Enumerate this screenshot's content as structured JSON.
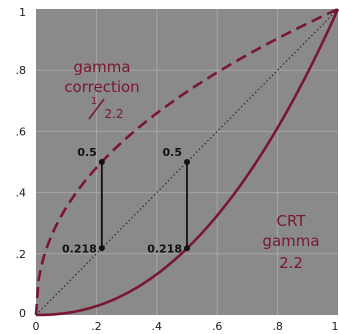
{
  "chart_data": {
    "type": "line",
    "xlim": [
      0,
      1
    ],
    "ylim": [
      0,
      1
    ],
    "grid": true,
    "x_ticks": [
      "0",
      ".2",
      ".4",
      ".6",
      ".8",
      "1"
    ],
    "y_ticks": [
      "0",
      ".2",
      ".4",
      ".6",
      ".8",
      "1"
    ],
    "colors": {
      "background": "#8a8a8a",
      "grid": "#a6a6a6",
      "curve": "#7a1630",
      "diagonal": "#2a2a2a",
      "markers": "#111111"
    },
    "series": [
      {
        "style": "dashed",
        "exponent": 0.4545,
        "x": [
          0,
          0.05,
          0.1,
          0.2,
          0.3,
          0.4,
          0.5,
          0.6,
          0.7,
          0.8,
          0.9,
          1.0
        ],
        "y": [
          0,
          0.256,
          0.351,
          0.481,
          0.579,
          0.659,
          0.73,
          0.793,
          0.85,
          0.904,
          0.953,
          1.0
        ]
      },
      {
        "style": "solid",
        "exponent": 2.2,
        "x": [
          0,
          0.1,
          0.2,
          0.3,
          0.4,
          0.5,
          0.6,
          0.7,
          0.8,
          0.9,
          1.0
        ],
        "y": [
          0,
          0.006,
          0.029,
          0.071,
          0.133,
          0.218,
          0.325,
          0.456,
          0.612,
          0.793,
          1.0
        ]
      },
      {
        "style": "dotted",
        "x": [
          0,
          1
        ],
        "y": [
          0,
          1
        ]
      }
    ],
    "annotations": {
      "gamma_correction": {
        "line1": "gamma",
        "line2": "correction",
        "fraction_num": "1",
        "fraction_den": "2.2"
      },
      "crt_gamma": {
        "line1": "CRT",
        "line2": "gamma",
        "line3": "2.2"
      }
    },
    "markers": [
      {
        "x": 0.218,
        "y_top": 0.5,
        "y_bottom": 0.218,
        "label_top": "0.5",
        "label_bottom": "0.218"
      },
      {
        "x": 0.5,
        "y_top": 0.5,
        "y_bottom": 0.218,
        "label_top": "0.5",
        "label_bottom": "0.218"
      }
    ]
  }
}
